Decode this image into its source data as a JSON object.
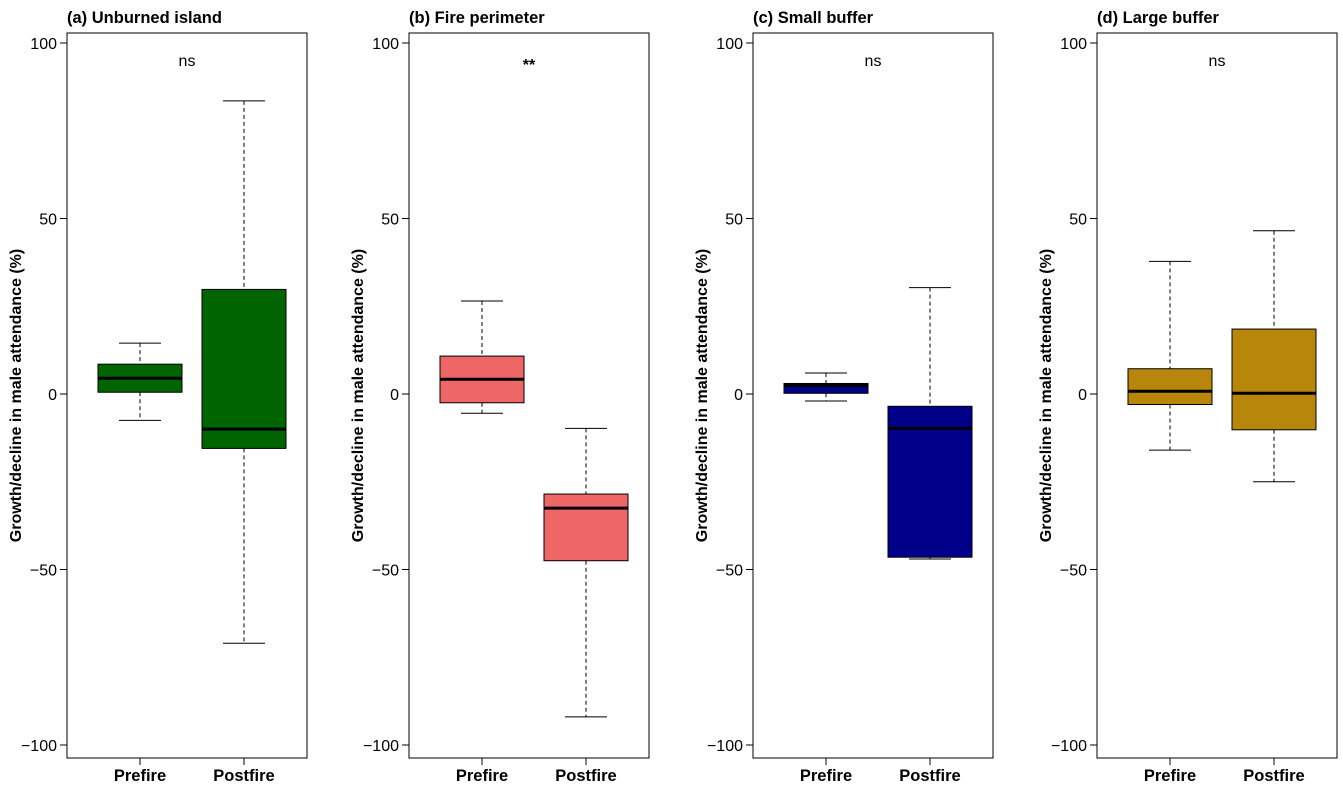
{
  "chart_data": [
    {
      "type": "box",
      "title": "(a) Unburned island",
      "ylabel": "Growth/decline in male attendance (%)",
      "ylim": [
        -100,
        100
      ],
      "yticks": [
        -100,
        -50,
        0,
        50,
        100
      ],
      "categories": [
        "Prefire",
        "Postfire"
      ],
      "significance": "ns",
      "fill": "#006400",
      "boxes": [
        {
          "label": "Prefire",
          "min": -7.5,
          "q1": 0.5,
          "median": 4.5,
          "q3": 8.5,
          "max": 14.5
        },
        {
          "label": "Postfire",
          "min": -71,
          "q1": -15.5,
          "median": -10,
          "q3": 29.8,
          "max": 83.5
        }
      ]
    },
    {
      "type": "box",
      "title": "(b) Fire perimeter",
      "ylabel": "Growth/decline in male attendance (%)",
      "ylim": [
        -100,
        100
      ],
      "yticks": [
        -100,
        -50,
        0,
        50,
        100
      ],
      "categories": [
        "Prefire",
        "Postfire"
      ],
      "significance": "**",
      "fill": "#EE6666",
      "boxes": [
        {
          "label": "Prefire",
          "min": -5.5,
          "q1": -2.5,
          "median": 4.2,
          "q3": 10.8,
          "max": 26.5
        },
        {
          "label": "Postfire",
          "min": -92,
          "q1": -47.5,
          "median": -32.5,
          "q3": -28.5,
          "max": -9.8
        }
      ]
    },
    {
      "type": "box",
      "title": "(c) Small buffer",
      "ylabel": "Growth/decline in male attendance (%)",
      "ylim": [
        -100,
        100
      ],
      "yticks": [
        -100,
        -50,
        0,
        50,
        100
      ],
      "categories": [
        "Prefire",
        "Postfire"
      ],
      "significance": "ns",
      "fill": "#00008B",
      "boxes": [
        {
          "label": "Prefire",
          "min": -2,
          "q1": 0.2,
          "median": 2.4,
          "q3": 3,
          "max": 6
        },
        {
          "label": "Postfire",
          "min": -47,
          "q1": -46.5,
          "median": -9.8,
          "q3": -3.5,
          "max": 30.3
        }
      ]
    },
    {
      "type": "box",
      "title": "(d) Large buffer",
      "ylabel": "Growth/decline in male attendance (%)",
      "ylim": [
        -100,
        100
      ],
      "yticks": [
        -100,
        -50,
        0,
        50,
        100
      ],
      "categories": [
        "Prefire",
        "Postfire"
      ],
      "significance": "ns",
      "fill": "#B8860B",
      "boxes": [
        {
          "label": "Prefire",
          "min": -16,
          "q1": -3,
          "median": 0.8,
          "q3": 7.2,
          "max": 37.8
        },
        {
          "label": "Postfire",
          "min": -25,
          "q1": -10.2,
          "median": 0.2,
          "q3": 18.5,
          "max": 46.5
        }
      ]
    }
  ]
}
